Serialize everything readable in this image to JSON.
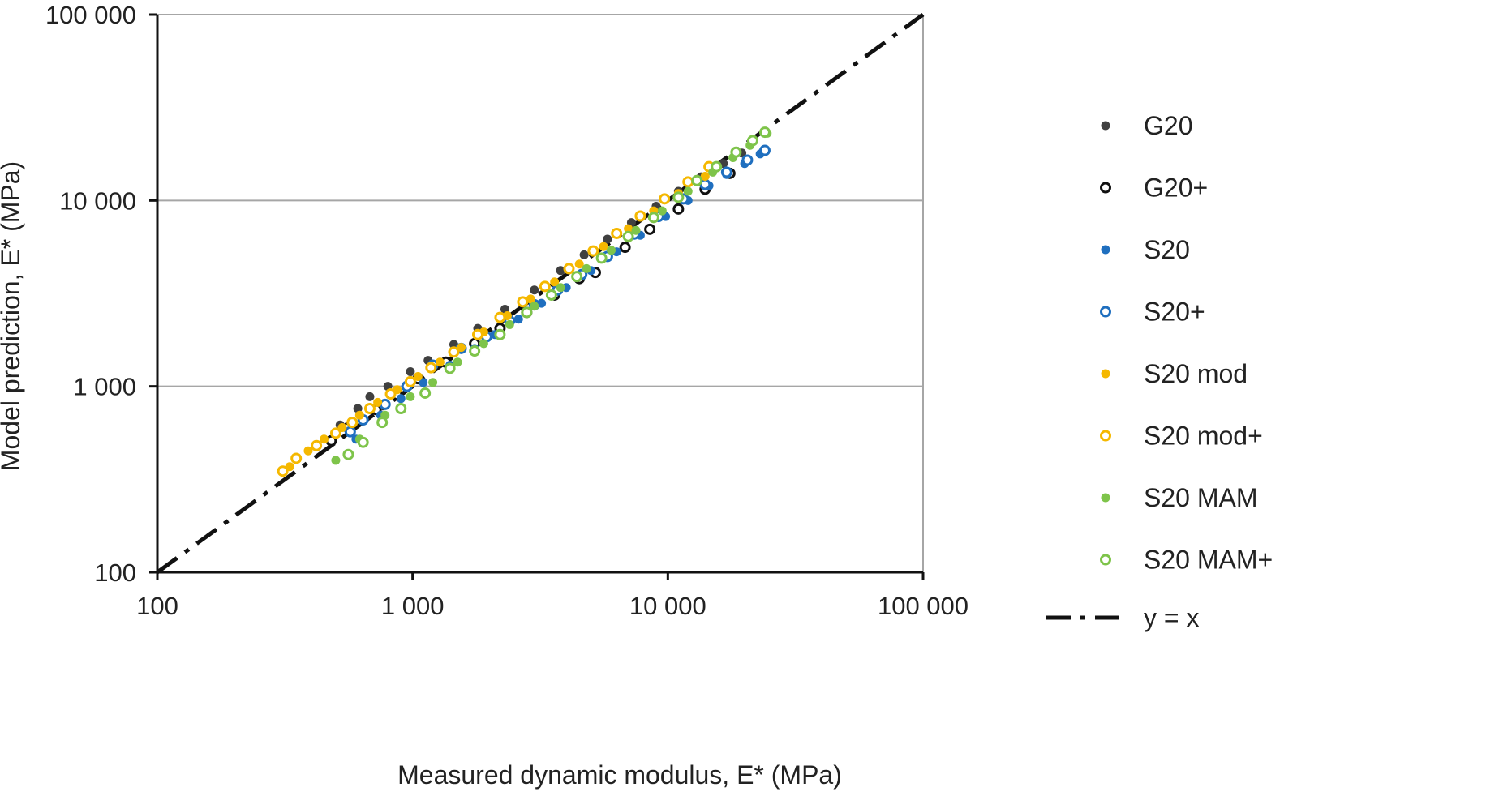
{
  "chart_data": {
    "type": "scatter",
    "xlabel": "Measured dynamic modulus, E* (MPa)",
    "ylabel": "Model prediction, E* (MPa)",
    "xscale": "log",
    "yscale": "log",
    "xlim": [
      100,
      100000
    ],
    "ylim": [
      100,
      100000
    ],
    "xticks": [
      100,
      1000,
      10000,
      100000
    ],
    "yticks": [
      100,
      1000,
      10000,
      100000
    ],
    "x_tick_labels": [
      "100",
      "1 000",
      "10 000",
      "100 000"
    ],
    "y_tick_labels": [
      "100",
      "1 000",
      "10 000",
      "100 000"
    ],
    "grid": "horizontal major",
    "legend_position": "right",
    "series": [
      {
        "name": "G20",
        "marker": "filled",
        "color": "#404040",
        "x": [
          520,
          610,
          680,
          800,
          980,
          1150,
          1450,
          1800,
          2300,
          3000,
          3800,
          4700,
          5800,
          7200,
          9000,
          11000,
          13500,
          16500,
          19500
        ],
        "y": [
          620,
          760,
          880,
          1000,
          1200,
          1380,
          1680,
          2050,
          2600,
          3300,
          4200,
          5100,
          6200,
          7600,
          9300,
          11200,
          13400,
          15800,
          18000
        ]
      },
      {
        "name": "G20+",
        "marker": "open",
        "color": "#111111",
        "x": [
          480,
          560,
          720,
          870,
          1050,
          1350,
          1750,
          2200,
          2800,
          3600,
          4500,
          5200,
          6800,
          8500,
          11000,
          14000,
          17500
        ],
        "y": [
          510,
          600,
          750,
          900,
          1100,
          1350,
          1700,
          2050,
          2500,
          3100,
          3800,
          4100,
          5600,
          7000,
          9000,
          11500,
          14000
        ]
      },
      {
        "name": "S20",
        "marker": "filled",
        "color": "#1f6fbf",
        "x": [
          600,
          750,
          900,
          1100,
          1400,
          1750,
          2100,
          2600,
          3200,
          4000,
          5000,
          6300,
          7800,
          9800,
          12000,
          14500,
          17000,
          20000,
          23000
        ],
        "y": [
          520,
          700,
          860,
          1050,
          1300,
          1600,
          1900,
          2300,
          2800,
          3400,
          4200,
          5300,
          6500,
          8200,
          10000,
          12000,
          13800,
          15800,
          17800
        ]
      },
      {
        "name": "S20+",
        "marker": "open",
        "color": "#1f6fbf",
        "x": [
          570,
          640,
          780,
          950,
          1200,
          1550,
          1950,
          2400,
          3000,
          3700,
          4600,
          5800,
          7400,
          9200,
          11500,
          14000,
          17000,
          20500,
          24000
        ],
        "y": [
          570,
          660,
          800,
          1000,
          1300,
          1600,
          1850,
          2250,
          2750,
          3300,
          4000,
          5000,
          6600,
          8200,
          10200,
          12200,
          14200,
          16500,
          18600
        ]
      },
      {
        "name": "S20 mod",
        "marker": "filled",
        "color": "#f5b800",
        "x": [
          330,
          390,
          450,
          530,
          620,
          730,
          870,
          1050,
          1280,
          1550,
          1900,
          2350,
          2900,
          3600,
          4500,
          5600,
          7000,
          8800,
          11000,
          14000
        ],
        "y": [
          370,
          450,
          520,
          600,
          700,
          820,
          960,
          1130,
          1350,
          1620,
          1960,
          2400,
          2950,
          3650,
          4550,
          5650,
          7050,
          8800,
          10900,
          13500
        ]
      },
      {
        "name": "S20 mod+",
        "marker": "open",
        "color": "#f5b800",
        "x": [
          310,
          350,
          420,
          500,
          580,
          680,
          820,
          980,
          1180,
          1450,
          1800,
          2200,
          2700,
          3300,
          4100,
          5100,
          6300,
          7800,
          9700,
          12000,
          14500
        ],
        "y": [
          350,
          410,
          480,
          560,
          640,
          760,
          910,
          1060,
          1260,
          1530,
          1900,
          2350,
          2850,
          3450,
          4300,
          5350,
          6650,
          8250,
          10200,
          12600,
          15200
        ]
      },
      {
        "name": "S20 MAM",
        "marker": "filled",
        "color": "#7ec44a",
        "x": [
          500,
          620,
          780,
          980,
          1200,
          1500,
          1900,
          2400,
          3000,
          3800,
          4800,
          6000,
          7500,
          9500,
          12000,
          15000,
          18000,
          21000,
          24500
        ],
        "y": [
          400,
          520,
          700,
          880,
          1050,
          1350,
          1700,
          2150,
          2700,
          3400,
          4300,
          5400,
          6900,
          8800,
          11200,
          14200,
          17000,
          19800,
          23000
        ]
      },
      {
        "name": "S20 MAM+",
        "marker": "open",
        "color": "#7ec44a",
        "x": [
          560,
          640,
          760,
          900,
          1120,
          1400,
          1750,
          2200,
          2800,
          3500,
          4400,
          5500,
          7000,
          8800,
          11000,
          13000,
          15500,
          18500,
          21500,
          24000
        ],
        "y": [
          430,
          500,
          640,
          760,
          920,
          1250,
          1550,
          1900,
          2500,
          3100,
          3900,
          4900,
          6400,
          8100,
          10400,
          12800,
          15200,
          18200,
          21000,
          23300
        ]
      }
    ],
    "reference_line": {
      "name": "y = x",
      "style": "dash-dot",
      "color": "#111111",
      "x": [
        100,
        100000
      ],
      "y": [
        100,
        100000
      ]
    }
  }
}
